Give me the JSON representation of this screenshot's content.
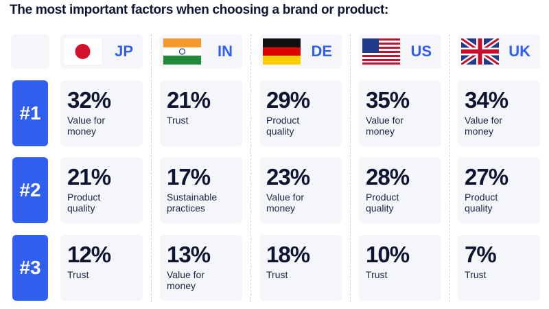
{
  "title": "The most important factors when choosing a brand or product:",
  "columns": [
    {
      "code": "JP"
    },
    {
      "code": "IN"
    },
    {
      "code": "DE"
    },
    {
      "code": "US"
    },
    {
      "code": "UK"
    }
  ],
  "rows": [
    {
      "rank": "#1",
      "cells": [
        {
          "percent": "32%",
          "factor": "Value for money"
        },
        {
          "percent": "21%",
          "factor": "Trust"
        },
        {
          "percent": "29%",
          "factor": "Product quality"
        },
        {
          "percent": "35%",
          "factor": "Value for money"
        },
        {
          "percent": "34%",
          "factor": "Value for money"
        }
      ]
    },
    {
      "rank": "#2",
      "cells": [
        {
          "percent": "21%",
          "factor": "Product quality"
        },
        {
          "percent": "17%",
          "factor": "Sustainable practices"
        },
        {
          "percent": "23%",
          "factor": "Value for money"
        },
        {
          "percent": "28%",
          "factor": "Product quality"
        },
        {
          "percent": "27%",
          "factor": "Product quality"
        }
      ]
    },
    {
      "rank": "#3",
      "cells": [
        {
          "percent": "12%",
          "factor": "Trust"
        },
        {
          "percent": "13%",
          "factor": "Value for money"
        },
        {
          "percent": "18%",
          "factor": "Trust"
        },
        {
          "percent": "10%",
          "factor": "Trust"
        },
        {
          "percent": "7%",
          "factor": "Trust"
        }
      ]
    }
  ]
}
